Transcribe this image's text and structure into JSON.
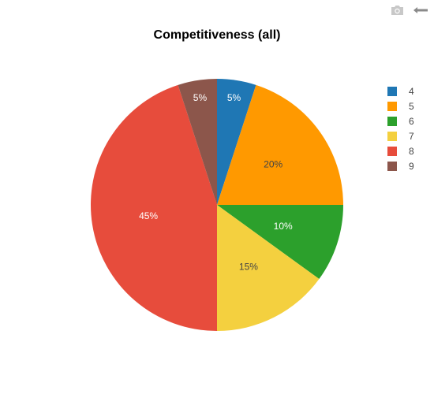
{
  "toolbar": {
    "camera_icon": "camera-icon",
    "logo_icon": "plotly-logo-icon"
  },
  "chart_data": {
    "type": "pie",
    "title": "Competitiveness (all)",
    "labels": [
      "4",
      "5",
      "6",
      "7",
      "8",
      "9"
    ],
    "values": [
      5,
      20,
      10,
      15,
      45,
      5
    ],
    "text_labels": [
      "5%",
      "20%",
      "10%",
      "15%",
      "45%",
      "5%"
    ],
    "colors": [
      "#1f77b4",
      "#ff9900",
      "#2ca02c",
      "#f4d03f",
      "#e74c3c",
      "#8c564b"
    ],
    "label_colors": [
      "#ffffff",
      "#444444",
      "#ffffff",
      "#444444",
      "#ffffff",
      "#ffffff"
    ],
    "legend": "right",
    "start_angle_deg": 90,
    "direction": "clockwise"
  }
}
